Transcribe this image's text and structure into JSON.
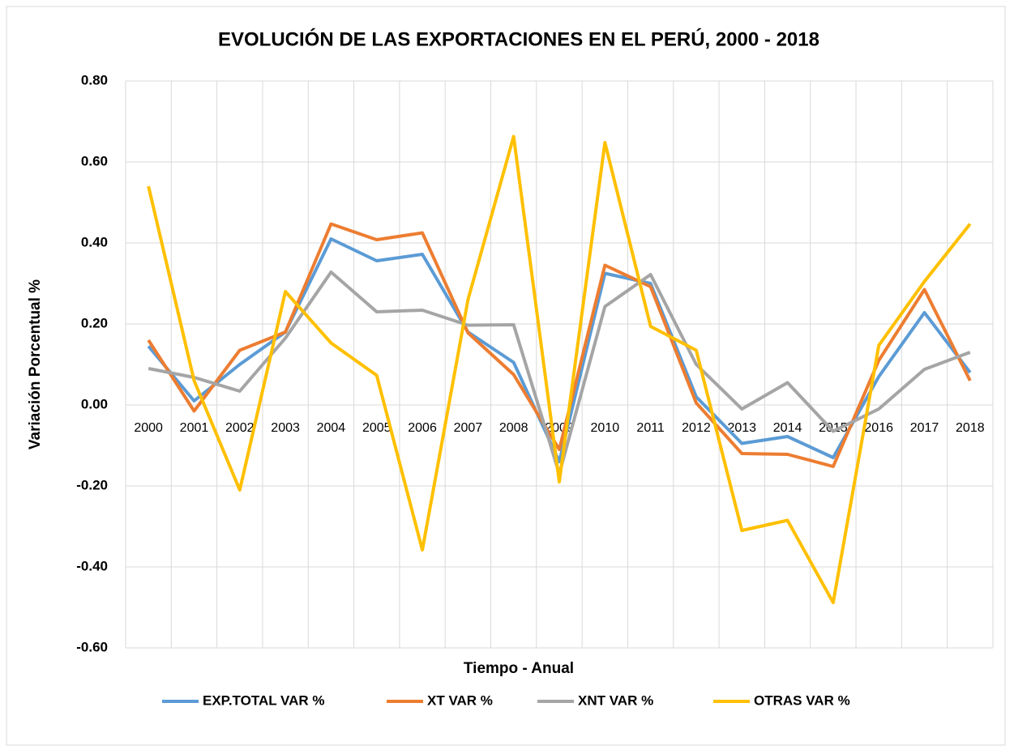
{
  "chart_data": {
    "type": "line",
    "title": "EVOLUCIÓN DE LAS EXPORTACIONES EN EL PERÚ, 2000 - 2018",
    "x_label": "Tiempo - Anual",
    "y_label": "Variación Porcentual %",
    "categories": [
      "2000",
      "2001",
      "2002",
      "2003",
      "2004",
      "2005",
      "2006",
      "2007",
      "2008",
      "2009",
      "2010",
      "2011",
      "2012",
      "2013",
      "2014",
      "2015",
      "2016",
      "2017",
      "2018"
    ],
    "series": [
      {
        "name": "EXP.TOTAL VAR %",
        "color": "#5b9bd5",
        "values": [
          0.145,
          0.01,
          0.1,
          0.18,
          0.41,
          0.356,
          0.372,
          0.18,
          0.105,
          -0.14,
          0.325,
          0.3,
          0.02,
          -0.095,
          -0.078,
          -0.13,
          0.07,
          0.228,
          0.08
        ]
      },
      {
        "name": "XT VAR %",
        "color": "#ed7d31",
        "values": [
          0.16,
          -0.015,
          0.135,
          0.18,
          0.447,
          0.408,
          0.425,
          0.178,
          0.075,
          -0.11,
          0.345,
          0.292,
          0.005,
          -0.12,
          -0.122,
          -0.152,
          0.11,
          0.285,
          0.06
        ]
      },
      {
        "name": "XNT VAR %",
        "color": "#a5a5a5",
        "values": [
          0.09,
          0.068,
          0.034,
          0.165,
          0.328,
          0.23,
          0.234,
          0.197,
          0.198,
          -0.17,
          0.243,
          0.322,
          0.1,
          -0.01,
          0.055,
          -0.065,
          -0.01,
          0.088,
          0.13
        ]
      },
      {
        "name": "OTRAS VAR %",
        "color": "#ffc000",
        "values": [
          0.54,
          0.06,
          -0.21,
          0.28,
          0.153,
          0.073,
          -0.358,
          0.26,
          0.663,
          -0.19,
          0.648,
          0.194,
          0.135,
          -0.31,
          -0.285,
          -0.488,
          0.147,
          0.305,
          0.447
        ]
      }
    ],
    "ylim": [
      -0.6,
      0.8
    ],
    "yticks": [
      {
        "value": -0.6,
        "label": "-0.60"
      },
      {
        "value": -0.4,
        "label": "-0.40"
      },
      {
        "value": -0.2,
        "label": "-0.20"
      },
      {
        "value": 0,
        "label": "0.00"
      },
      {
        "value": 0.2,
        "label": "0.20"
      },
      {
        "value": 0.4,
        "label": "0.40"
      },
      {
        "value": 0.6,
        "label": "0.60"
      },
      {
        "value": 0.8,
        "label": "0.80"
      }
    ],
    "grid": true,
    "legend": "bottom"
  }
}
